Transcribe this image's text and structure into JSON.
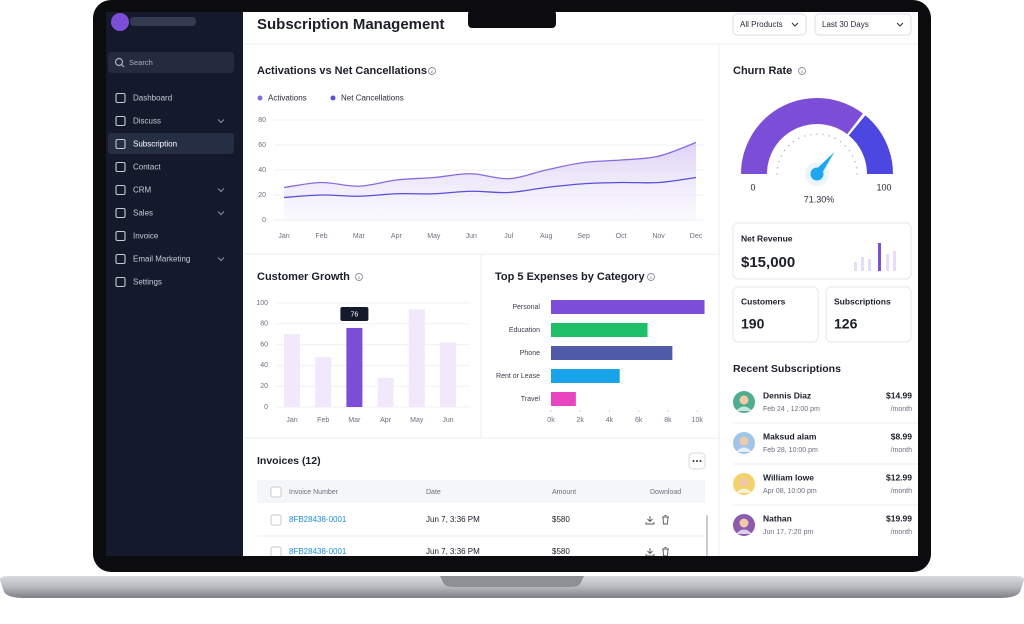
{
  "sidebar": {
    "search": "Search",
    "active": 2,
    "items": [
      {
        "label": "Dashboard",
        "expandable": false
      },
      {
        "label": "Discuss",
        "expandable": true
      },
      {
        "label": "Subscription",
        "expandable": false
      },
      {
        "label": "Contact",
        "expandable": false
      },
      {
        "label": "CRM",
        "expandable": true
      },
      {
        "label": "Sales",
        "expandable": true
      },
      {
        "label": "Invoice",
        "expandable": false
      },
      {
        "label": "Email Marketing",
        "expandable": true
      },
      {
        "label": "Settings",
        "expandable": false
      }
    ]
  },
  "header": {
    "title": "Subscription Management",
    "filters": [
      "All Products",
      "Last 30 Days"
    ]
  },
  "activations": {
    "type": "line",
    "title": "Activations vs Net Cancellations",
    "categories": [
      "Jan",
      "Feb",
      "Mar",
      "Apr",
      "May",
      "Jun",
      "Jul",
      "Aug",
      "Sep",
      "Oct",
      "Nov",
      "Dec"
    ],
    "series": [
      {
        "name": "Activations",
        "color": "#8a6bdc",
        "values": [
          26,
          30,
          27,
          32,
          34,
          37,
          33,
          40,
          46,
          48,
          51,
          62
        ]
      },
      {
        "name": "Net Cancellations",
        "color": "#5a4fd8",
        "values": [
          18,
          20,
          19,
          21,
          21,
          23,
          22,
          26,
          29,
          30,
          30,
          34
        ]
      }
    ],
    "ylim": [
      0,
      80
    ],
    "yticks": [
      0,
      20,
      40,
      60,
      80
    ],
    "grid": true
  },
  "growth": {
    "type": "bar",
    "title": "Customer Growth",
    "categories": [
      "Jan",
      "Feb",
      "Mar",
      "Apr",
      "May",
      "Jun"
    ],
    "values": [
      70,
      48,
      76,
      28,
      94,
      62
    ],
    "color": "#f2e8fb",
    "highlight": 2,
    "highlight_color": "#7c4dd6",
    "ylim": [
      0,
      100
    ],
    "yticks": [
      0,
      20,
      40,
      60,
      80,
      100
    ],
    "grid": true
  },
  "expenses": {
    "type": "bar",
    "orientation": "horizontal",
    "title": "Top 5 Expenses by Category",
    "categories": [
      "Personal",
      "Education",
      "Phone",
      "Rent or Lease",
      "Travel"
    ],
    "values": [
      10500,
      6600,
      8300,
      4700,
      1700
    ],
    "colors": [
      "#7c4dd6",
      "#1fbf6a",
      "#4f5aa8",
      "#19a3e8",
      "#e846c0"
    ],
    "xlim": [
      0,
      10600
    ],
    "xticks": [
      {
        "value": 0,
        "label": "0k"
      },
      {
        "value": 2000,
        "label": "2k"
      },
      {
        "value": 4000,
        "label": "4k"
      },
      {
        "value": 6000,
        "label": "6k"
      },
      {
        "value": 8000,
        "label": "8k"
      },
      {
        "value": 10000,
        "label": "10k"
      }
    ]
  },
  "churn": {
    "type": "gauge",
    "title": "Churn Rate",
    "value": 71.3,
    "value_label": "71.30%",
    "range": [
      0,
      100
    ],
    "colors": [
      "#7c4dd6",
      "#4b47e0"
    ]
  },
  "stats": [
    {
      "label": "Net Revenue",
      "value": "$15,000"
    },
    {
      "label": "Customers",
      "value": 190
    },
    {
      "label": "Subscriptions",
      "value": 126
    }
  ],
  "recent": {
    "title": "Recent Subscriptions",
    "items": [
      {
        "name": "Dennis Diaz",
        "date": "Feb 24 , 12:00 pm",
        "price": "$14.99",
        "period": "/month"
      },
      {
        "name": "Maksud alam",
        "date": "Feb 28, 10:00 pm",
        "price": "$8.99",
        "period": "/month"
      },
      {
        "name": "William lowe",
        "date": "Apr 08, 10:00 pm",
        "price": "$12.99",
        "period": "/month"
      },
      {
        "name": "Nathan",
        "date": "Jun 17, 7:20 pm",
        "price": "$19.99",
        "period": "/month"
      }
    ]
  },
  "invoices": {
    "title": "Invoices (12)",
    "columns": [
      "Invoice Number",
      "Date",
      "Amount",
      "Download"
    ],
    "rows": [
      {
        "id": "8FB28438-0001",
        "date": "Jun 7, 3:36 PM",
        "amount": "$580"
      },
      {
        "id": "8FB28438-0001",
        "date": "Jun 7, 3:36 PM",
        "amount": "$580"
      }
    ]
  }
}
